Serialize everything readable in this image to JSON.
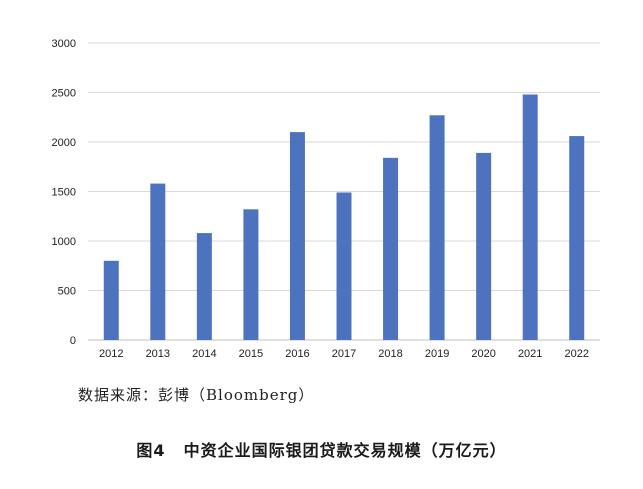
{
  "chart_data": {
    "type": "bar",
    "categories": [
      "2012",
      "2013",
      "2014",
      "2015",
      "2016",
      "2017",
      "2018",
      "2019",
      "2020",
      "2021",
      "2022"
    ],
    "values": [
      800,
      1580,
      1080,
      1320,
      2100,
      1490,
      1840,
      2270,
      1890,
      2480,
      2060
    ],
    "ylim": [
      0,
      3000
    ],
    "yticks": [
      0,
      500,
      1000,
      1500,
      2000,
      2500,
      3000
    ],
    "grid": true,
    "bar_color": "#4e73be",
    "grid_color": "#d9d9d9"
  },
  "source_text": "数据来源：彭博（Bloomberg）",
  "caption": {
    "number": "图4",
    "title": "中资企业国际银团贷款交易规模（万亿元）"
  }
}
